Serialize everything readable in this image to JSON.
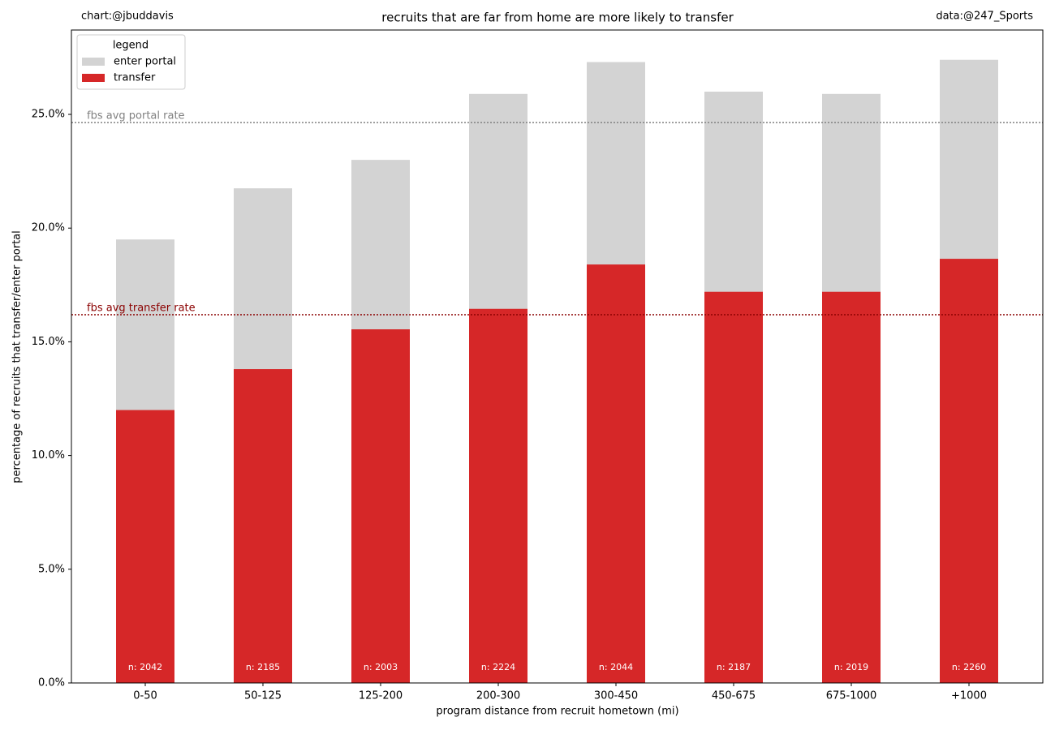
{
  "chart_data": {
    "type": "bar",
    "title": "recruits that are far from home are more likely to transfer",
    "left_note": "chart:@jbuddavis",
    "right_note": "data:@247_Sports",
    "x_label": "program distance from recruit hometown (mi)",
    "y_label": "percentage of recruits that transfer/enter portal",
    "categories": [
      "0-50",
      "50-125",
      "125-200",
      "200-300",
      "300-450",
      "450-675",
      "675-1000",
      "+1000"
    ],
    "series": [
      {
        "name": "enter portal",
        "color": "#d3d3d3",
        "values": [
          19.5,
          21.75,
          23.0,
          25.9,
          27.3,
          26.0,
          25.9,
          27.4
        ]
      },
      {
        "name": "transfer",
        "color": "#d62728",
        "values": [
          12.0,
          13.8,
          15.55,
          16.45,
          18.4,
          17.2,
          17.2,
          18.65
        ]
      }
    ],
    "n_labels": [
      "n: 2042",
      "n: 2185",
      "n: 2003",
      "n: 2224",
      "n: 2044",
      "n: 2187",
      "n: 2019",
      "n: 2260"
    ],
    "reference_lines": [
      {
        "label": "fbs avg portal rate",
        "value": 24.64,
        "color": "#808080"
      },
      {
        "label": "fbs avg transfer rate",
        "value": 16.19,
        "color": "#8b0000"
      }
    ],
    "legend_title": "legend",
    "legend_position": "upper-left",
    "ylim": [
      0,
      28.71
    ],
    "yticks": [
      {
        "value": 0,
        "label": "0.0%"
      },
      {
        "value": 5,
        "label": "5.0%"
      },
      {
        "value": 10,
        "label": "10.0%"
      },
      {
        "value": 15,
        "label": "15.0%"
      },
      {
        "value": 20,
        "label": "20.0%"
      },
      {
        "value": 25,
        "label": "25.0%"
      }
    ],
    "grid": false
  }
}
